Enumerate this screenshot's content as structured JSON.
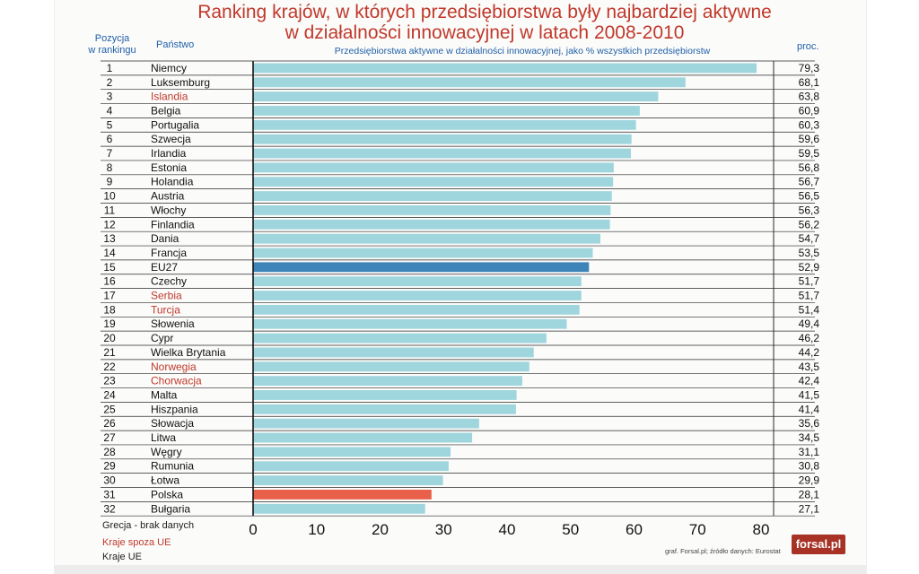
{
  "header": {
    "title_line1": "Ranking krajów, w których przedsiębiorstwa były najbardziej aktywne",
    "title_line2": "w działalności innowacyjnej w latach 2008-2010",
    "col_rank_line1": "Pozycja",
    "col_rank_line2": "w rankingu",
    "col_country": "Państwo",
    "col_subtitle": "Przedsiębiorstwa aktywne w działalności innowacyjnej, jako % wszystkich przedsiębiorstw",
    "col_value": "proc."
  },
  "footer": {
    "note_missing": "Grecja - brak danych",
    "legend_non_eu": "Kraje spoza UE",
    "legend_eu": "Kraje UE",
    "source": "graf. Forsal.pl; źródło danych: Eurostat",
    "logo": "forsal.pl"
  },
  "colors": {
    "title": "#c0392b",
    "header_blue": "#1f5fa8",
    "bar_default": "#9fd6dd",
    "bar_eu27": "#3d85b8",
    "bar_poland": "#e9604a",
    "non_eu_label": "#c0392b"
  },
  "chart_data": {
    "type": "bar",
    "orientation": "horizontal",
    "title": "Ranking krajów, w których przedsiębiorstwa były najbardziej aktywne w działalności innowacyjnej w latach 2008-2010",
    "subtitle": "Przedsiębiorstwa aktywne w działalności innowacyjnej, jako % wszystkich przedsiębiorstw",
    "xlim": [
      0,
      80
    ],
    "x_ticks": [
      0,
      10,
      20,
      30,
      40,
      50,
      60,
      70,
      80
    ],
    "grid": "horizontal row lines",
    "rows": [
      {
        "rank": "1",
        "country": "Niemcy",
        "value": 79.3,
        "value_label": "79,3",
        "group": "eu"
      },
      {
        "rank": "2",
        "country": "Luksemburg",
        "value": 68.1,
        "value_label": "68,1",
        "group": "eu"
      },
      {
        "rank": "3",
        "country": "Islandia",
        "value": 63.8,
        "value_label": "63,8",
        "group": "non_eu"
      },
      {
        "rank": "4",
        "country": "Belgia",
        "value": 60.9,
        "value_label": "60,9",
        "group": "eu"
      },
      {
        "rank": "5",
        "country": "Portugalia",
        "value": 60.3,
        "value_label": "60,3",
        "group": "eu"
      },
      {
        "rank": "6",
        "country": "Szwecja",
        "value": 59.6,
        "value_label": "59,6",
        "group": "eu"
      },
      {
        "rank": "7",
        "country": "Irlandia",
        "value": 59.5,
        "value_label": "59,5",
        "group": "eu"
      },
      {
        "rank": "8",
        "country": "Estonia",
        "value": 56.8,
        "value_label": "56,8",
        "group": "eu"
      },
      {
        "rank": "9",
        "country": "Holandia",
        "value": 56.7,
        "value_label": "56,7",
        "group": "eu"
      },
      {
        "rank": "10",
        "country": "Austria",
        "value": 56.5,
        "value_label": "56,5",
        "group": "eu"
      },
      {
        "rank": "11",
        "country": "Włochy",
        "value": 56.3,
        "value_label": "56,3",
        "group": "eu"
      },
      {
        "rank": "12",
        "country": "Finlandia",
        "value": 56.2,
        "value_label": "56,2",
        "group": "eu"
      },
      {
        "rank": "13",
        "country": "Dania",
        "value": 54.7,
        "value_label": "54,7",
        "group": "eu"
      },
      {
        "rank": "14",
        "country": "Francja",
        "value": 53.5,
        "value_label": "53,5",
        "group": "eu"
      },
      {
        "rank": "15",
        "country": "EU27",
        "value": 52.9,
        "value_label": "52,9",
        "group": "eu27"
      },
      {
        "rank": "16",
        "country": "Czechy",
        "value": 51.7,
        "value_label": "51,7",
        "group": "eu"
      },
      {
        "rank": "17",
        "country": "Serbia",
        "value": 51.7,
        "value_label": "51,7",
        "group": "non_eu"
      },
      {
        "rank": "18",
        "country": "Turcja",
        "value": 51.4,
        "value_label": "51,4",
        "group": "non_eu"
      },
      {
        "rank": "19",
        "country": "Słowenia",
        "value": 49.4,
        "value_label": "49,4",
        "group": "eu"
      },
      {
        "rank": "20",
        "country": "Cypr",
        "value": 46.2,
        "value_label": "46,2",
        "group": "eu"
      },
      {
        "rank": "21",
        "country": "Wielka Brytania",
        "value": 44.2,
        "value_label": "44,2",
        "group": "eu"
      },
      {
        "rank": "22",
        "country": "Norwegia",
        "value": 43.5,
        "value_label": "43,5",
        "group": "non_eu"
      },
      {
        "rank": "23",
        "country": "Chorwacja",
        "value": 42.4,
        "value_label": "42,4",
        "group": "non_eu"
      },
      {
        "rank": "24",
        "country": "Malta",
        "value": 41.5,
        "value_label": "41,5",
        "group": "eu"
      },
      {
        "rank": "25",
        "country": "Hiszpania",
        "value": 41.4,
        "value_label": "41,4",
        "group": "eu"
      },
      {
        "rank": "26",
        "country": "Słowacja",
        "value": 35.6,
        "value_label": "35,6",
        "group": "eu"
      },
      {
        "rank": "27",
        "country": "Litwa",
        "value": 34.5,
        "value_label": "34,5",
        "group": "eu"
      },
      {
        "rank": "28",
        "country": "Węgry",
        "value": 31.1,
        "value_label": "31,1",
        "group": "eu"
      },
      {
        "rank": "29",
        "country": "Rumunia",
        "value": 30.8,
        "value_label": "30,8",
        "group": "eu"
      },
      {
        "rank": "30",
        "country": "Łotwa",
        "value": 29.9,
        "value_label": "29,9",
        "group": "eu"
      },
      {
        "rank": "31",
        "country": "Polska",
        "value": 28.1,
        "value_label": "28,1",
        "group": "highlight"
      },
      {
        "rank": "32",
        "country": "Bułgaria",
        "value": 27.1,
        "value_label": "27,1",
        "group": "eu"
      }
    ]
  }
}
